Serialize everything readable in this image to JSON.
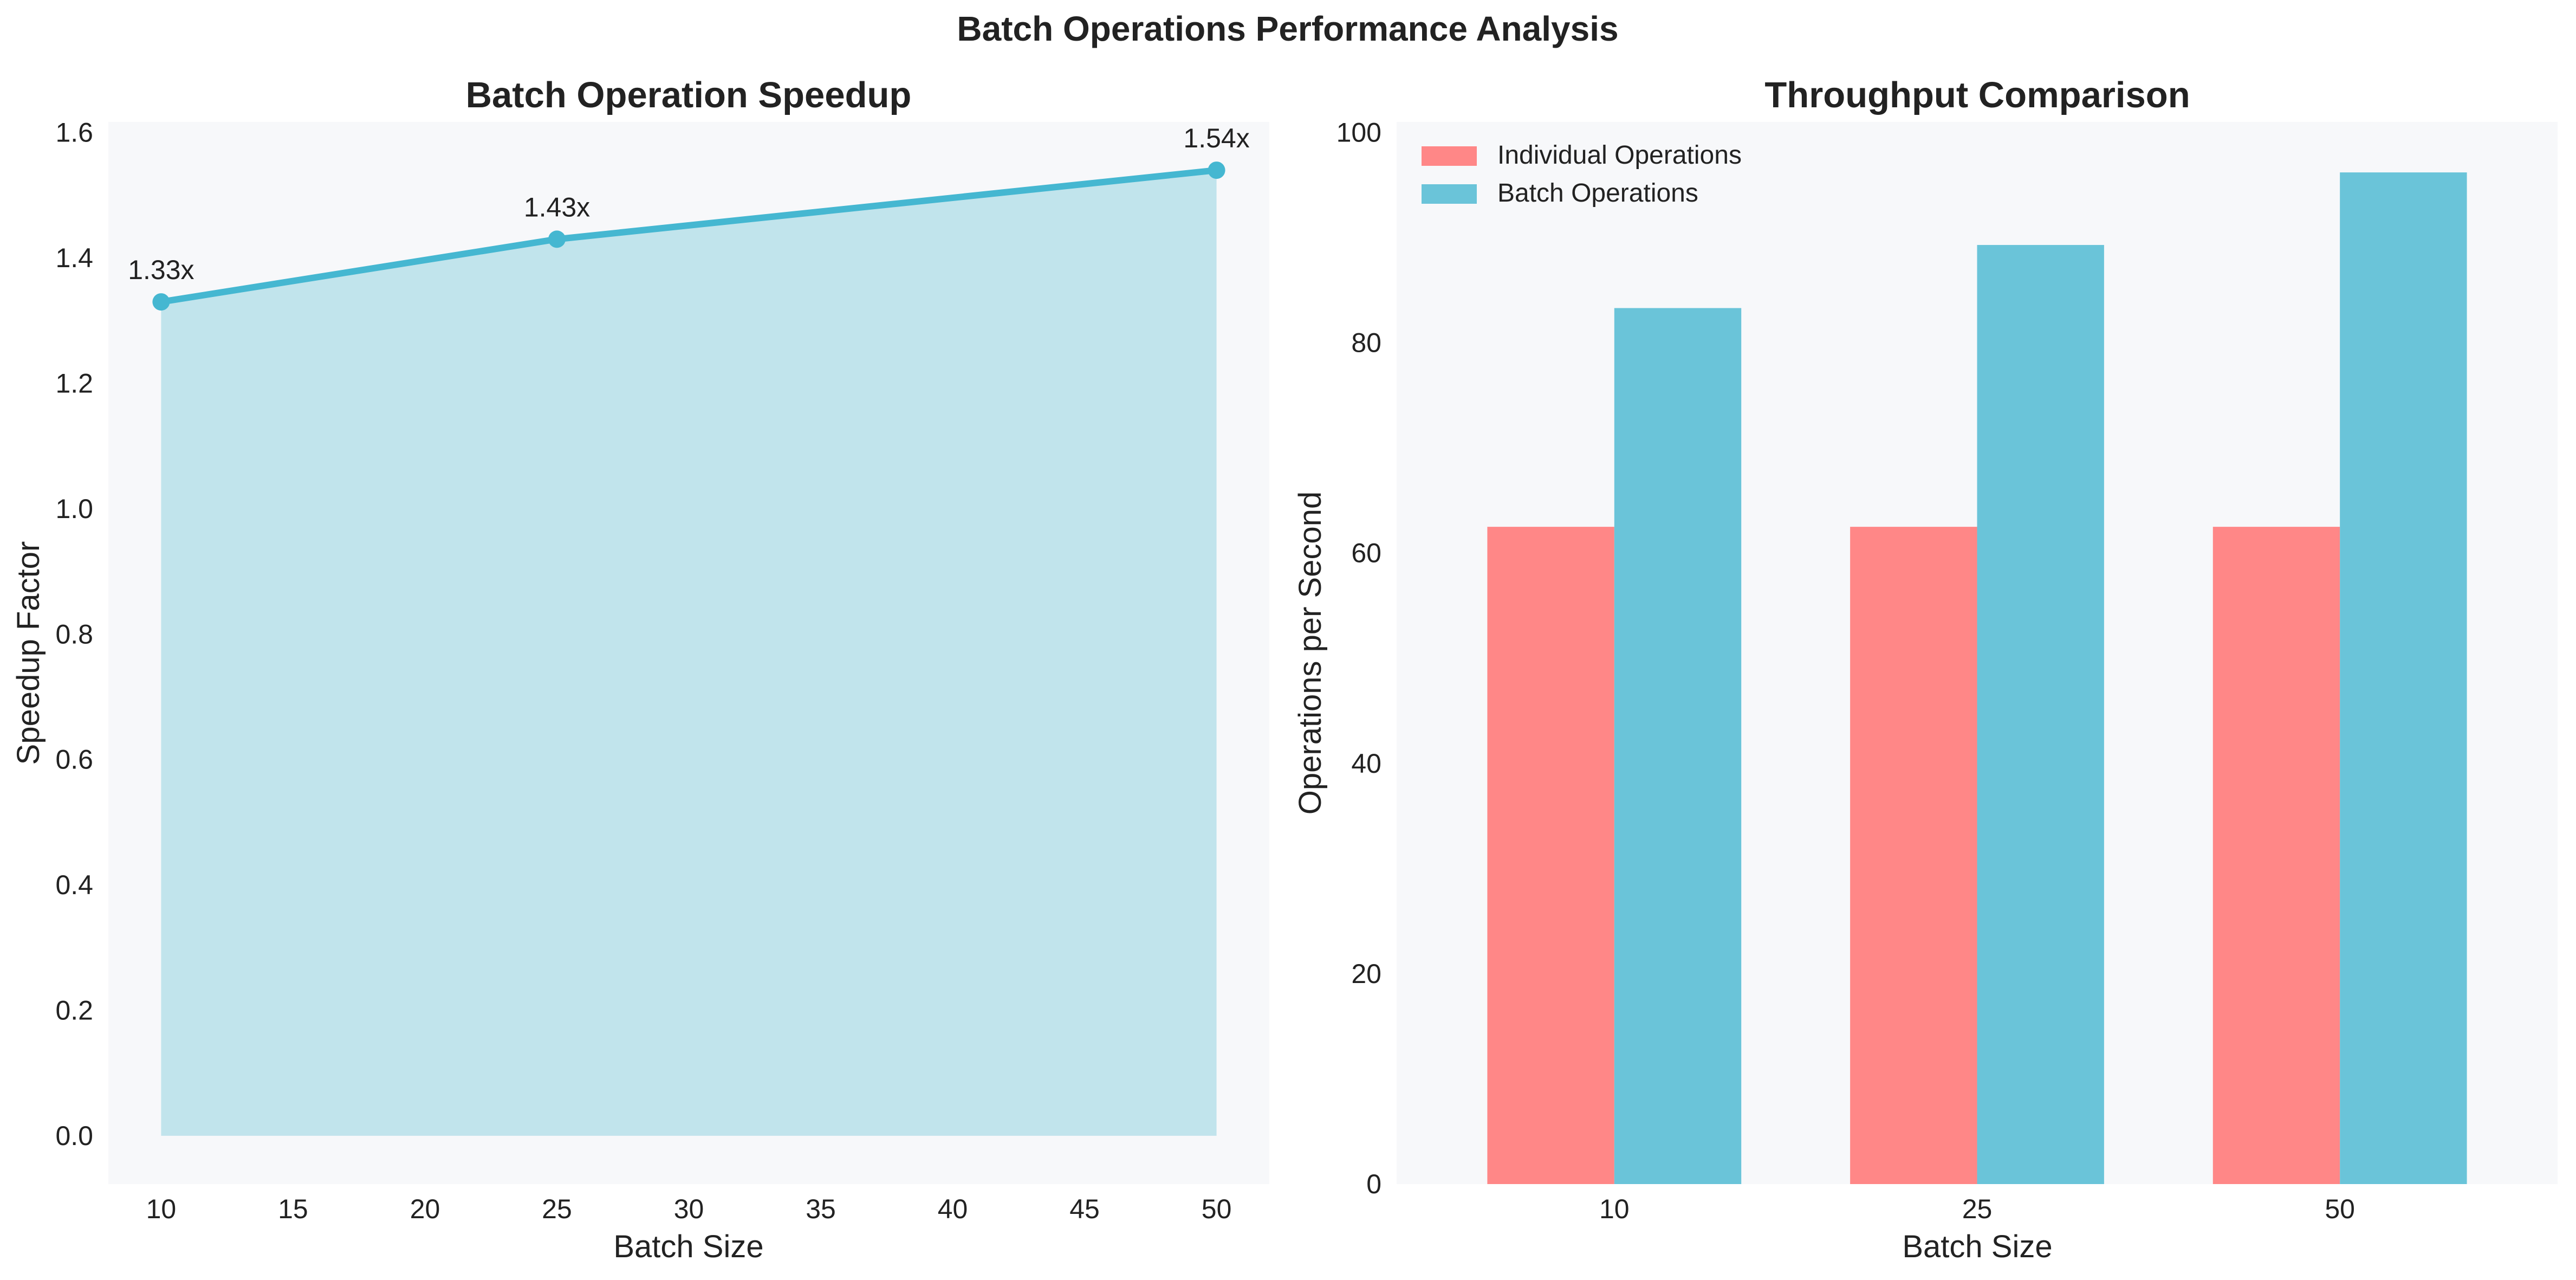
{
  "figure": {
    "title": "Batch Operations Performance Analysis"
  },
  "colors": {
    "panel_bg": "#f7f8fa",
    "line": "#45b7d1",
    "fill": "#c1e4ec",
    "individual": "#ff8787",
    "batch": "#6ac4d9"
  },
  "chart_data": [
    {
      "type": "line",
      "title": "Batch Operation Speedup",
      "xlabel": "Batch Size",
      "ylabel": "Speedup Factor",
      "x": [
        10,
        25,
        50
      ],
      "y": [
        1.33,
        1.43,
        1.54
      ],
      "point_labels": [
        "1.33x",
        "1.43x",
        "1.54x"
      ],
      "area_fill": true,
      "xlim": [
        8,
        52
      ],
      "ylim": [
        -0.077,
        1.617
      ],
      "xticks": [
        10,
        15,
        20,
        25,
        30,
        35,
        40,
        45,
        50
      ],
      "xtick_labels": [
        "10",
        "15",
        "20",
        "25",
        "30",
        "35",
        "40",
        "45",
        "50"
      ],
      "yticks": [
        0,
        0.2,
        0.4,
        0.6,
        0.8,
        1.0,
        1.2,
        1.4,
        1.6
      ],
      "ytick_labels": [
        "0.0",
        "0.2",
        "0.4",
        "0.6",
        "0.8",
        "1.0",
        "1.2",
        "1.4",
        "1.6"
      ],
      "grid": false
    },
    {
      "type": "bar",
      "title": "Throughput Comparison",
      "xlabel": "Batch Size",
      "ylabel": "Operations per Second",
      "categories": [
        "10",
        "25",
        "50"
      ],
      "series": [
        {
          "name": "Individual Operations",
          "values": [
            62.5,
            62.5,
            62.5
          ]
        },
        {
          "name": "Batch Operations",
          "values": [
            83.3,
            89.3,
            96.2
          ]
        }
      ],
      "ylim": [
        0,
        101
      ],
      "yticks": [
        0,
        20,
        40,
        60,
        80,
        100
      ],
      "ytick_labels": [
        "0",
        "20",
        "40",
        "60",
        "80",
        "100"
      ],
      "legend": "top-left",
      "grid": false
    }
  ]
}
